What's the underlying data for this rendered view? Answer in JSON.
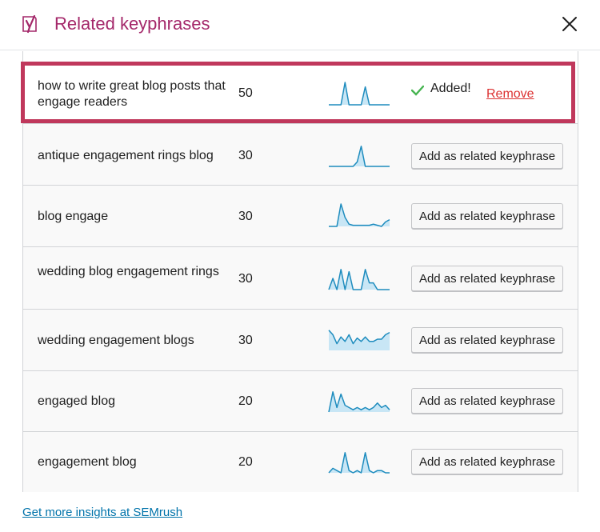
{
  "header": {
    "title": "Related keyphrases",
    "logo_icon": "yoast-icon",
    "close_icon": "close-icon"
  },
  "colors": {
    "title": "#a4286a",
    "highlight": "#c0385c",
    "remove": "#dc3232",
    "link": "#0073aa",
    "sparkline_line": "#1e8cbe",
    "sparkline_fill": "#c8e6f5",
    "check": "#46b450"
  },
  "rows": [
    {
      "keyphrase": "how to write great blog posts that engage readers",
      "volume": "50",
      "status": "added",
      "added_label": "Added!",
      "remove_label": "Remove",
      "trend": [
        0,
        0,
        0,
        0,
        1,
        0,
        0,
        0,
        0,
        0.8,
        0,
        0,
        0,
        0,
        0,
        0
      ]
    },
    {
      "keyphrase": "antique engagement rings blog",
      "volume": "30",
      "status": "add",
      "button_label": "Add as related keyphrase",
      "trend": [
        0,
        0,
        0,
        0,
        0,
        0,
        0,
        0.2,
        0.9,
        0,
        0,
        0,
        0,
        0,
        0,
        0
      ]
    },
    {
      "keyphrase": "blog engage",
      "volume": "30",
      "status": "add",
      "button_label": "Add as related keyphrase",
      "trend": [
        0,
        0,
        0,
        1,
        0.4,
        0.1,
        0.05,
        0.05,
        0.05,
        0.05,
        0.05,
        0.1,
        0.05,
        0,
        0.2,
        0.3
      ]
    },
    {
      "keyphrase": "wedding blog engagement rings",
      "volume": "30",
      "status": "add",
      "button_label": "Add as related keyphrase",
      "trend": [
        0,
        0.5,
        0,
        0.9,
        0,
        0.8,
        0,
        0,
        0,
        0.9,
        0.3,
        0.3,
        0,
        0,
        0,
        0
      ]
    },
    {
      "keyphrase": "wedding engagement blogs",
      "volume": "30",
      "status": "add",
      "button_label": "Add as related keyphrase",
      "trend": [
        0.9,
        0.7,
        0.3,
        0.6,
        0.4,
        0.7,
        0.3,
        0.55,
        0.4,
        0.6,
        0.4,
        0.4,
        0.5,
        0.5,
        0.7,
        0.8
      ]
    },
    {
      "keyphrase": "engaged blog",
      "volume": "20",
      "status": "add",
      "button_label": "Add as related keyphrase",
      "trend": [
        0,
        0.9,
        0.2,
        0.8,
        0.3,
        0.2,
        0.1,
        0.2,
        0.1,
        0.2,
        0.1,
        0.2,
        0.4,
        0.2,
        0.3,
        0.1
      ]
    },
    {
      "keyphrase": "engagement blog",
      "volume": "20",
      "status": "add",
      "button_label": "Add as related keyphrase",
      "trend": [
        0,
        0.2,
        0.1,
        0,
        0.9,
        0.1,
        0,
        0.1,
        0,
        0.9,
        0.1,
        0,
        0.1,
        0.1,
        0,
        0
      ]
    }
  ],
  "footer": {
    "link_label": "Get more insights at SEMrush"
  }
}
